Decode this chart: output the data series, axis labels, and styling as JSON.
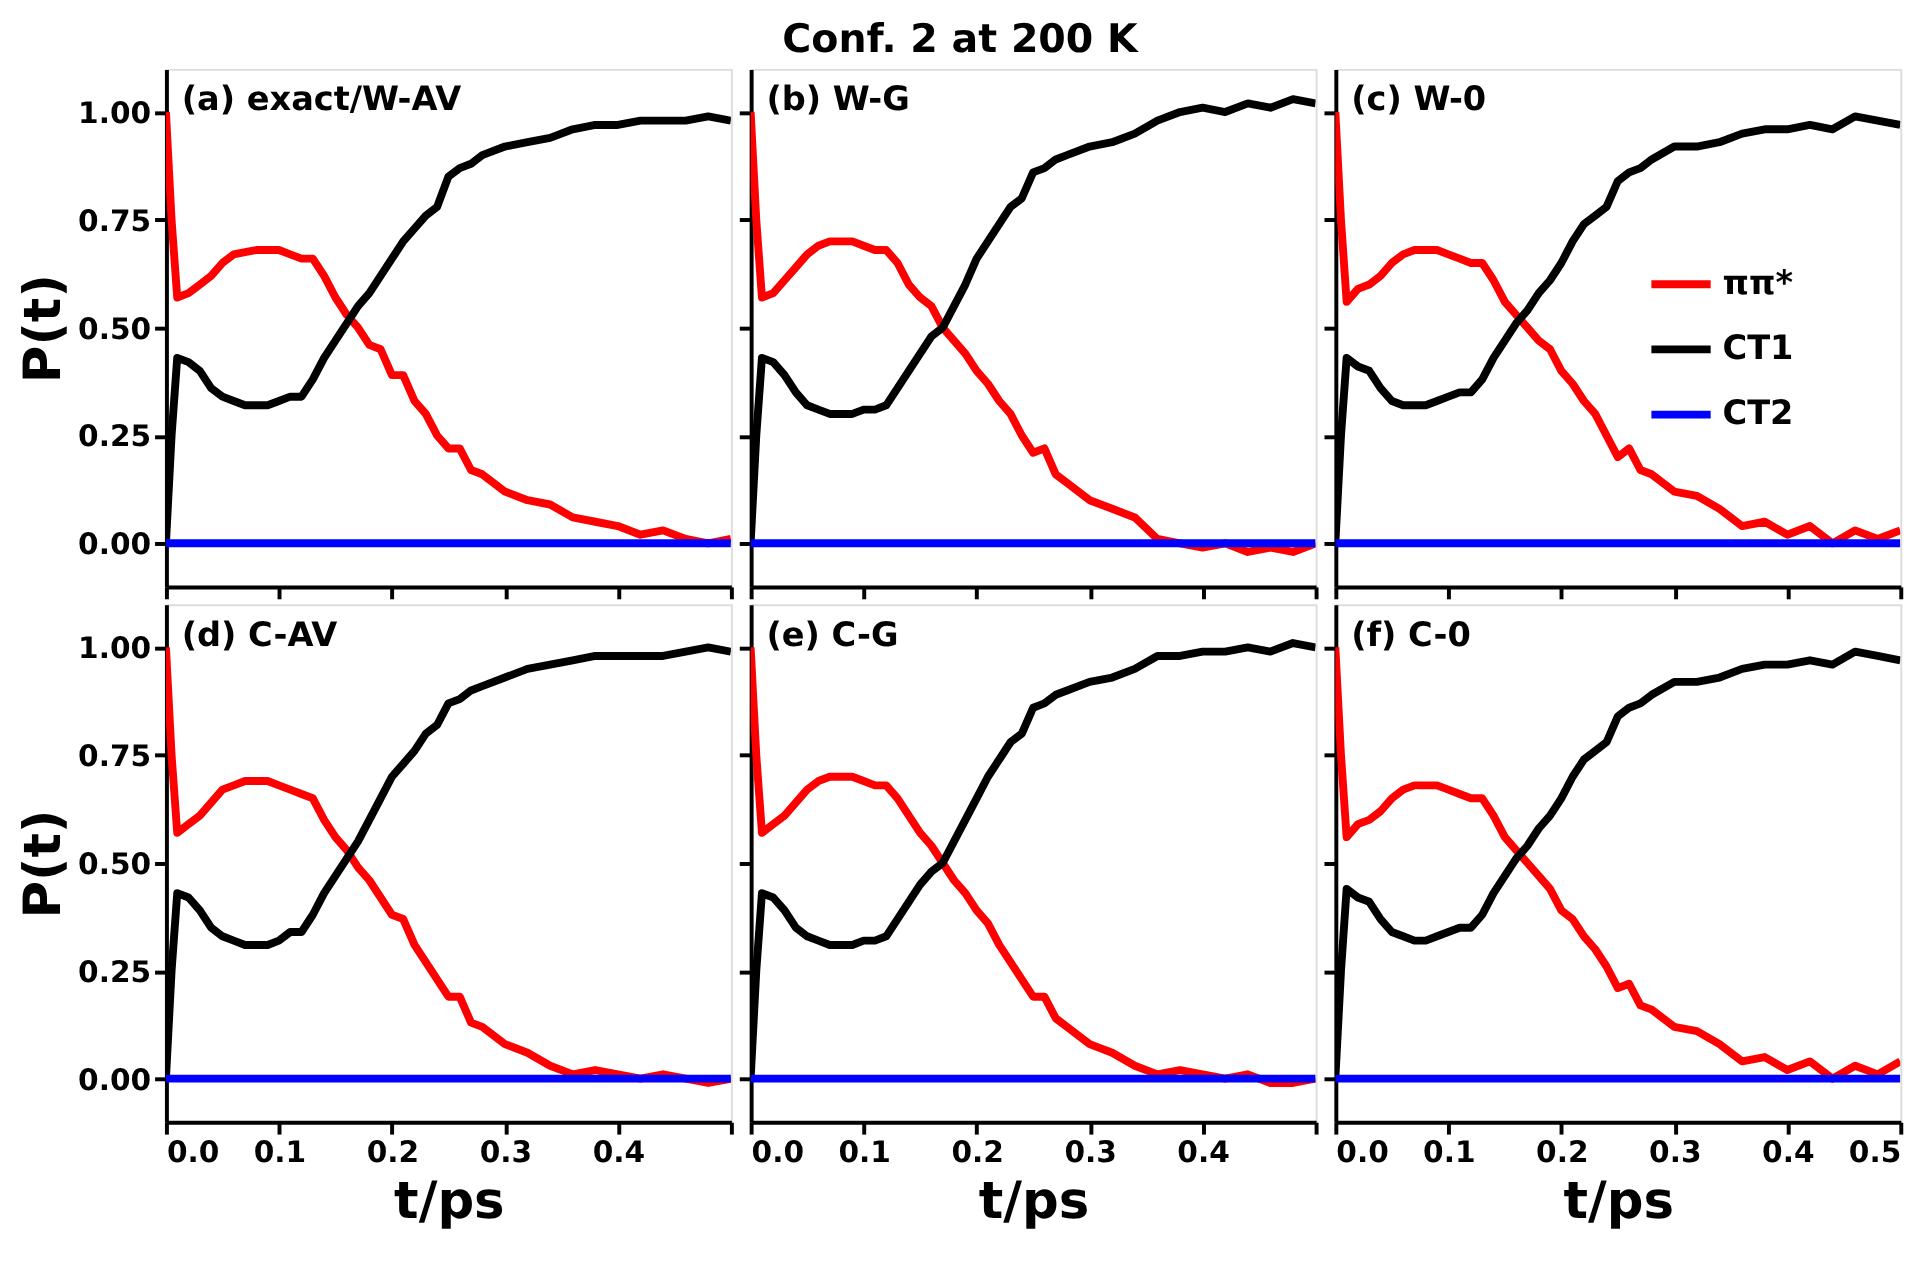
{
  "chart_data": [
    {
      "type": "line",
      "ylabel": "P(t)",
      "annotations": [
        "(a) exact/W-AV"
      ],
      "tick_labels": "y",
      "xlim": [
        0,
        0.5
      ],
      "ylim": [
        -0.1,
        1.1
      ],
      "xticks": [
        0,
        0.1,
        0.2,
        0.3,
        0.4,
        0.5
      ],
      "yticks": [
        {
          "value": 0,
          "label": "0.00"
        },
        {
          "value": 0.25,
          "label": "0.25"
        },
        {
          "value": 0.5,
          "label": "0.50"
        },
        {
          "value": 0.75,
          "label": "0.75"
        },
        {
          "value": 1,
          "label": "1.00"
        }
      ],
      "x": [
        0,
        0.005,
        0.01,
        0.02,
        0.03,
        0.04,
        0.05,
        0.06,
        0.07,
        0.08,
        0.09,
        0.1,
        0.11,
        0.12,
        0.13,
        0.14,
        0.15,
        0.16,
        0.17,
        0.18,
        0.19,
        0.2,
        0.21,
        0.22,
        0.23,
        0.24,
        0.25,
        0.26,
        0.27,
        0.28,
        0.3,
        0.32,
        0.34,
        0.36,
        0.38,
        0.4,
        0.42,
        0.44,
        0.46,
        0.48,
        0.5
      ],
      "series": [
        {
          "color": "#ff0000",
          "values": [
            1.0,
            0.75,
            0.57,
            0.58,
            0.6,
            0.62,
            0.65,
            0.67,
            0.675,
            0.68,
            0.68,
            0.68,
            0.67,
            0.66,
            0.66,
            0.62,
            0.57,
            0.53,
            0.5,
            0.46,
            0.45,
            0.39,
            0.39,
            0.33,
            0.3,
            0.25,
            0.22,
            0.22,
            0.17,
            0.16,
            0.12,
            0.1,
            0.09,
            0.06,
            0.05,
            0.04,
            0.02,
            0.03,
            0.01,
            0.0,
            0.01
          ]
        },
        {
          "color": "#000000",
          "values": [
            0,
            0.25,
            0.43,
            0.42,
            0.4,
            0.36,
            0.34,
            0.33,
            0.32,
            0.32,
            0.32,
            0.33,
            0.34,
            0.34,
            0.38,
            0.43,
            0.47,
            0.51,
            0.55,
            0.58,
            0.62,
            0.66,
            0.7,
            0.73,
            0.76,
            0.78,
            0.85,
            0.87,
            0.88,
            0.9,
            0.92,
            0.93,
            0.94,
            0.96,
            0.97,
            0.97,
            0.98,
            0.98,
            0.98,
            0.99,
            0.98
          ]
        },
        {
          "color": "#0000ff",
          "values": [
            0,
            0,
            0,
            0,
            0,
            0,
            0,
            0,
            0,
            0,
            0,
            0,
            0,
            0,
            0,
            0,
            0,
            0,
            0,
            0,
            0,
            0,
            0,
            0,
            0,
            0,
            0,
            0,
            0,
            0,
            0,
            0,
            0,
            0,
            0,
            0,
            0,
            0,
            0,
            0,
            0
          ]
        }
      ]
    },
    {
      "type": "line",
      "title": "Conf. 2 at 200 K",
      "annotations": [
        "(b) W-G"
      ],
      "tick_labels": false,
      "xlim": [
        0,
        0.5
      ],
      "ylim": [
        -0.1,
        1.1
      ],
      "xticks": [
        0,
        0.1,
        0.2,
        0.3,
        0.4,
        0.5
      ],
      "yticks": [
        0,
        0.25,
        0.5,
        0.75,
        1
      ],
      "x": [
        0,
        0.005,
        0.01,
        0.02,
        0.03,
        0.04,
        0.05,
        0.06,
        0.07,
        0.08,
        0.09,
        0.1,
        0.11,
        0.12,
        0.13,
        0.14,
        0.15,
        0.16,
        0.17,
        0.18,
        0.19,
        0.2,
        0.21,
        0.22,
        0.23,
        0.24,
        0.25,
        0.26,
        0.27,
        0.28,
        0.3,
        0.32,
        0.34,
        0.36,
        0.38,
        0.4,
        0.42,
        0.44,
        0.46,
        0.48,
        0.5
      ],
      "series": [
        {
          "color": "#ff0000",
          "values": [
            1.0,
            0.75,
            0.57,
            0.58,
            0.61,
            0.64,
            0.67,
            0.69,
            0.7,
            0.7,
            0.7,
            0.69,
            0.68,
            0.68,
            0.65,
            0.6,
            0.57,
            0.55,
            0.5,
            0.47,
            0.44,
            0.4,
            0.37,
            0.33,
            0.3,
            0.25,
            0.21,
            0.22,
            0.16,
            0.14,
            0.1,
            0.08,
            0.06,
            0.01,
            0.0,
            -0.01,
            0.0,
            -0.02,
            -0.01,
            -0.02,
            0.0
          ]
        },
        {
          "color": "#000000",
          "values": [
            0,
            0.25,
            0.43,
            0.42,
            0.39,
            0.35,
            0.32,
            0.31,
            0.3,
            0.3,
            0.3,
            0.31,
            0.31,
            0.32,
            0.36,
            0.4,
            0.44,
            0.48,
            0.5,
            0.55,
            0.6,
            0.66,
            0.7,
            0.74,
            0.78,
            0.8,
            0.86,
            0.87,
            0.89,
            0.9,
            0.92,
            0.93,
            0.95,
            0.98,
            1.0,
            1.01,
            1.0,
            1.02,
            1.01,
            1.03,
            1.02
          ]
        },
        {
          "color": "#0000ff",
          "values": [
            0,
            0,
            0,
            0,
            0,
            0,
            0,
            0,
            0,
            0,
            0,
            0,
            0,
            0,
            0,
            0,
            0,
            0,
            0,
            0,
            0,
            0,
            0,
            0,
            0,
            0,
            0,
            0,
            0,
            0,
            0,
            0,
            0,
            0,
            0,
            0,
            0,
            0,
            0,
            0,
            0
          ]
        }
      ]
    },
    {
      "type": "line",
      "annotations": [
        "(c) W-0"
      ],
      "tick_labels": false,
      "legend": "right",
      "xlim": [
        0,
        0.5
      ],
      "ylim": [
        -0.1,
        1.1
      ],
      "xticks": [
        0,
        0.1,
        0.2,
        0.3,
        0.4,
        0.5
      ],
      "yticks": [
        0,
        0.25,
        0.5,
        0.75,
        1
      ],
      "x": [
        0,
        0.005,
        0.01,
        0.02,
        0.03,
        0.04,
        0.05,
        0.06,
        0.07,
        0.08,
        0.09,
        0.1,
        0.11,
        0.12,
        0.13,
        0.14,
        0.15,
        0.16,
        0.17,
        0.18,
        0.19,
        0.2,
        0.21,
        0.22,
        0.23,
        0.24,
        0.25,
        0.26,
        0.27,
        0.28,
        0.3,
        0.32,
        0.34,
        0.36,
        0.38,
        0.4,
        0.42,
        0.44,
        0.46,
        0.48,
        0.5
      ],
      "series": [
        {
          "name": "ππ*",
          "color": "#ff0000",
          "values": [
            1.0,
            0.75,
            0.56,
            0.59,
            0.6,
            0.62,
            0.65,
            0.67,
            0.68,
            0.68,
            0.68,
            0.67,
            0.66,
            0.65,
            0.65,
            0.61,
            0.56,
            0.53,
            0.5,
            0.47,
            0.45,
            0.4,
            0.37,
            0.33,
            0.3,
            0.25,
            0.2,
            0.22,
            0.17,
            0.16,
            0.12,
            0.11,
            0.08,
            0.04,
            0.05,
            0.02,
            0.04,
            0.0,
            0.03,
            0.01,
            0.03
          ]
        },
        {
          "name": "CT1",
          "color": "#000000",
          "values": [
            0,
            0.25,
            0.43,
            0.41,
            0.4,
            0.36,
            0.33,
            0.32,
            0.32,
            0.32,
            0.33,
            0.34,
            0.35,
            0.35,
            0.38,
            0.43,
            0.47,
            0.51,
            0.54,
            0.58,
            0.61,
            0.65,
            0.7,
            0.74,
            0.76,
            0.78,
            0.84,
            0.86,
            0.87,
            0.89,
            0.92,
            0.92,
            0.93,
            0.95,
            0.96,
            0.96,
            0.97,
            0.96,
            0.99,
            0.98,
            0.97
          ]
        },
        {
          "name": "CT2",
          "color": "#0000ff",
          "values": [
            0,
            0,
            0,
            0,
            0,
            0,
            0,
            0,
            0,
            0,
            0,
            0,
            0,
            0,
            0,
            0,
            0,
            0,
            0,
            0,
            0,
            0,
            0,
            0,
            0,
            0,
            0,
            0,
            0,
            0,
            0,
            0,
            0,
            0,
            0,
            0,
            0,
            0,
            0,
            0,
            0
          ]
        }
      ]
    },
    {
      "type": "line",
      "xlabel": "t/ps",
      "ylabel": "P(t)",
      "annotations": [
        "(d) C-AV"
      ],
      "xlim": [
        0,
        0.5
      ],
      "ylim": [
        -0.1,
        1.1
      ],
      "xticks": [
        {
          "value": 0,
          "label": "0.0"
        },
        {
          "value": 0.1,
          "label": "0.1"
        },
        {
          "value": 0.2,
          "label": "0.2"
        },
        {
          "value": 0.3,
          "label": "0.3"
        },
        {
          "value": 0.4,
          "label": "0.4"
        },
        {
          "value": 0.5,
          "label": null
        }
      ],
      "yticks": [
        {
          "value": 0,
          "label": "0.00"
        },
        {
          "value": 0.25,
          "label": "0.25"
        },
        {
          "value": 0.5,
          "label": "0.50"
        },
        {
          "value": 0.75,
          "label": "0.75"
        },
        {
          "value": 1,
          "label": "1.00"
        }
      ],
      "x": [
        0,
        0.005,
        0.01,
        0.02,
        0.03,
        0.04,
        0.05,
        0.06,
        0.07,
        0.08,
        0.09,
        0.1,
        0.11,
        0.12,
        0.13,
        0.14,
        0.15,
        0.16,
        0.17,
        0.18,
        0.19,
        0.2,
        0.21,
        0.22,
        0.23,
        0.24,
        0.25,
        0.26,
        0.27,
        0.28,
        0.3,
        0.32,
        0.34,
        0.36,
        0.38,
        0.4,
        0.42,
        0.44,
        0.46,
        0.48,
        0.5
      ],
      "series": [
        {
          "color": "#ff0000",
          "values": [
            1.0,
            0.75,
            0.57,
            0.59,
            0.61,
            0.64,
            0.67,
            0.68,
            0.69,
            0.69,
            0.69,
            0.68,
            0.67,
            0.66,
            0.65,
            0.6,
            0.56,
            0.53,
            0.49,
            0.46,
            0.42,
            0.38,
            0.37,
            0.31,
            0.27,
            0.23,
            0.19,
            0.19,
            0.13,
            0.12,
            0.08,
            0.06,
            0.03,
            0.01,
            0.02,
            0.01,
            0.0,
            0.01,
            0.0,
            -0.01,
            0.0
          ]
        },
        {
          "color": "#000000",
          "values": [
            0,
            0.25,
            0.43,
            0.42,
            0.39,
            0.35,
            0.33,
            0.32,
            0.31,
            0.31,
            0.31,
            0.32,
            0.34,
            0.34,
            0.38,
            0.43,
            0.47,
            0.51,
            0.55,
            0.6,
            0.65,
            0.7,
            0.73,
            0.76,
            0.8,
            0.82,
            0.87,
            0.88,
            0.9,
            0.91,
            0.93,
            0.95,
            0.96,
            0.97,
            0.98,
            0.98,
            0.98,
            0.98,
            0.99,
            1.0,
            0.99
          ]
        },
        {
          "color": "#0000ff",
          "values": [
            0,
            0,
            0,
            0,
            0,
            0,
            0,
            0,
            0,
            0,
            0,
            0,
            0,
            0,
            0,
            0,
            0,
            0,
            0,
            0,
            0,
            0,
            0,
            0,
            0,
            0,
            0,
            0,
            0,
            0,
            0,
            0,
            0,
            0,
            0,
            0,
            0,
            0,
            0,
            0,
            0
          ]
        }
      ]
    },
    {
      "type": "line",
      "xlabel": "t/ps",
      "annotations": [
        "(e) C-G"
      ],
      "tick_labels": "x",
      "xlim": [
        0,
        0.5
      ],
      "ylim": [
        -0.1,
        1.1
      ],
      "xticks": [
        {
          "value": 0,
          "label": "0.0"
        },
        {
          "value": 0.1,
          "label": "0.1"
        },
        {
          "value": 0.2,
          "label": "0.2"
        },
        {
          "value": 0.3,
          "label": "0.3"
        },
        {
          "value": 0.4,
          "label": "0.4"
        },
        {
          "value": 0.5,
          "label": null
        }
      ],
      "yticks": [
        0,
        0.25,
        0.5,
        0.75,
        1
      ],
      "x": [
        0,
        0.005,
        0.01,
        0.02,
        0.03,
        0.04,
        0.05,
        0.06,
        0.07,
        0.08,
        0.09,
        0.1,
        0.11,
        0.12,
        0.13,
        0.14,
        0.15,
        0.16,
        0.17,
        0.18,
        0.19,
        0.2,
        0.21,
        0.22,
        0.23,
        0.24,
        0.25,
        0.26,
        0.27,
        0.28,
        0.3,
        0.32,
        0.34,
        0.36,
        0.38,
        0.4,
        0.42,
        0.44,
        0.46,
        0.48,
        0.5
      ],
      "series": [
        {
          "color": "#ff0000",
          "values": [
            1.0,
            0.75,
            0.57,
            0.59,
            0.61,
            0.64,
            0.67,
            0.69,
            0.7,
            0.7,
            0.7,
            0.69,
            0.68,
            0.68,
            0.65,
            0.61,
            0.57,
            0.54,
            0.5,
            0.46,
            0.43,
            0.39,
            0.36,
            0.31,
            0.27,
            0.23,
            0.19,
            0.19,
            0.14,
            0.12,
            0.08,
            0.06,
            0.03,
            0.01,
            0.02,
            0.01,
            0.0,
            0.01,
            -0.01,
            -0.01,
            0.0
          ]
        },
        {
          "color": "#000000",
          "values": [
            0,
            0.25,
            0.43,
            0.42,
            0.39,
            0.35,
            0.33,
            0.32,
            0.31,
            0.31,
            0.31,
            0.32,
            0.32,
            0.33,
            0.37,
            0.41,
            0.45,
            0.48,
            0.5,
            0.55,
            0.6,
            0.65,
            0.7,
            0.74,
            0.78,
            0.8,
            0.86,
            0.87,
            0.89,
            0.9,
            0.92,
            0.93,
            0.95,
            0.98,
            0.98,
            0.99,
            0.99,
            1.0,
            0.99,
            1.01,
            1.0
          ]
        },
        {
          "color": "#0000ff",
          "values": [
            0,
            0,
            0,
            0,
            0,
            0,
            0,
            0,
            0,
            0,
            0,
            0,
            0,
            0,
            0,
            0,
            0,
            0,
            0,
            0,
            0,
            0,
            0,
            0,
            0,
            0,
            0,
            0,
            0,
            0,
            0,
            0,
            0,
            0,
            0,
            0,
            0,
            0,
            0,
            0,
            0
          ]
        }
      ]
    },
    {
      "type": "line",
      "xlabel": "t/ps",
      "annotations": [
        "(f) C-0"
      ],
      "tick_labels": "x",
      "xlim": [
        0,
        0.5
      ],
      "ylim": [
        -0.1,
        1.1
      ],
      "xticks": [
        {
          "value": 0,
          "label": "0.0"
        },
        {
          "value": 0.1,
          "label": "0.1"
        },
        {
          "value": 0.2,
          "label": "0.2"
        },
        {
          "value": 0.3,
          "label": "0.3"
        },
        {
          "value": 0.4,
          "label": "0.4"
        },
        {
          "value": 0.5,
          "label": "0.5"
        }
      ],
      "yticks": [
        0,
        0.25,
        0.5,
        0.75,
        1
      ],
      "x": [
        0,
        0.005,
        0.01,
        0.02,
        0.03,
        0.04,
        0.05,
        0.06,
        0.07,
        0.08,
        0.09,
        0.1,
        0.11,
        0.12,
        0.13,
        0.14,
        0.15,
        0.16,
        0.17,
        0.18,
        0.19,
        0.2,
        0.21,
        0.22,
        0.23,
        0.24,
        0.25,
        0.26,
        0.27,
        0.28,
        0.3,
        0.32,
        0.34,
        0.36,
        0.38,
        0.4,
        0.42,
        0.44,
        0.46,
        0.48,
        0.5
      ],
      "series": [
        {
          "color": "#ff0000",
          "values": [
            1.0,
            0.75,
            0.56,
            0.59,
            0.6,
            0.62,
            0.65,
            0.67,
            0.68,
            0.68,
            0.68,
            0.67,
            0.66,
            0.65,
            0.65,
            0.61,
            0.56,
            0.53,
            0.5,
            0.47,
            0.44,
            0.39,
            0.37,
            0.33,
            0.3,
            0.26,
            0.21,
            0.22,
            0.17,
            0.16,
            0.12,
            0.11,
            0.08,
            0.04,
            0.05,
            0.02,
            0.04,
            0.0,
            0.03,
            0.01,
            0.04
          ]
        },
        {
          "color": "#000000",
          "values": [
            0,
            0.25,
            0.44,
            0.42,
            0.41,
            0.37,
            0.34,
            0.33,
            0.32,
            0.32,
            0.33,
            0.34,
            0.35,
            0.35,
            0.38,
            0.43,
            0.47,
            0.51,
            0.54,
            0.58,
            0.61,
            0.65,
            0.7,
            0.74,
            0.76,
            0.78,
            0.84,
            0.86,
            0.87,
            0.89,
            0.92,
            0.92,
            0.93,
            0.95,
            0.96,
            0.96,
            0.97,
            0.96,
            0.99,
            0.98,
            0.97
          ]
        },
        {
          "color": "#0000ff",
          "values": [
            0,
            0,
            0,
            0,
            0,
            0,
            0,
            0,
            0,
            0,
            0,
            0,
            0,
            0,
            0,
            0,
            0,
            0,
            0,
            0,
            0,
            0,
            0,
            0,
            0,
            0,
            0,
            0,
            0,
            0,
            0,
            0,
            0,
            0,
            0,
            0,
            0,
            0,
            0,
            0,
            0
          ]
        }
      ]
    }
  ]
}
